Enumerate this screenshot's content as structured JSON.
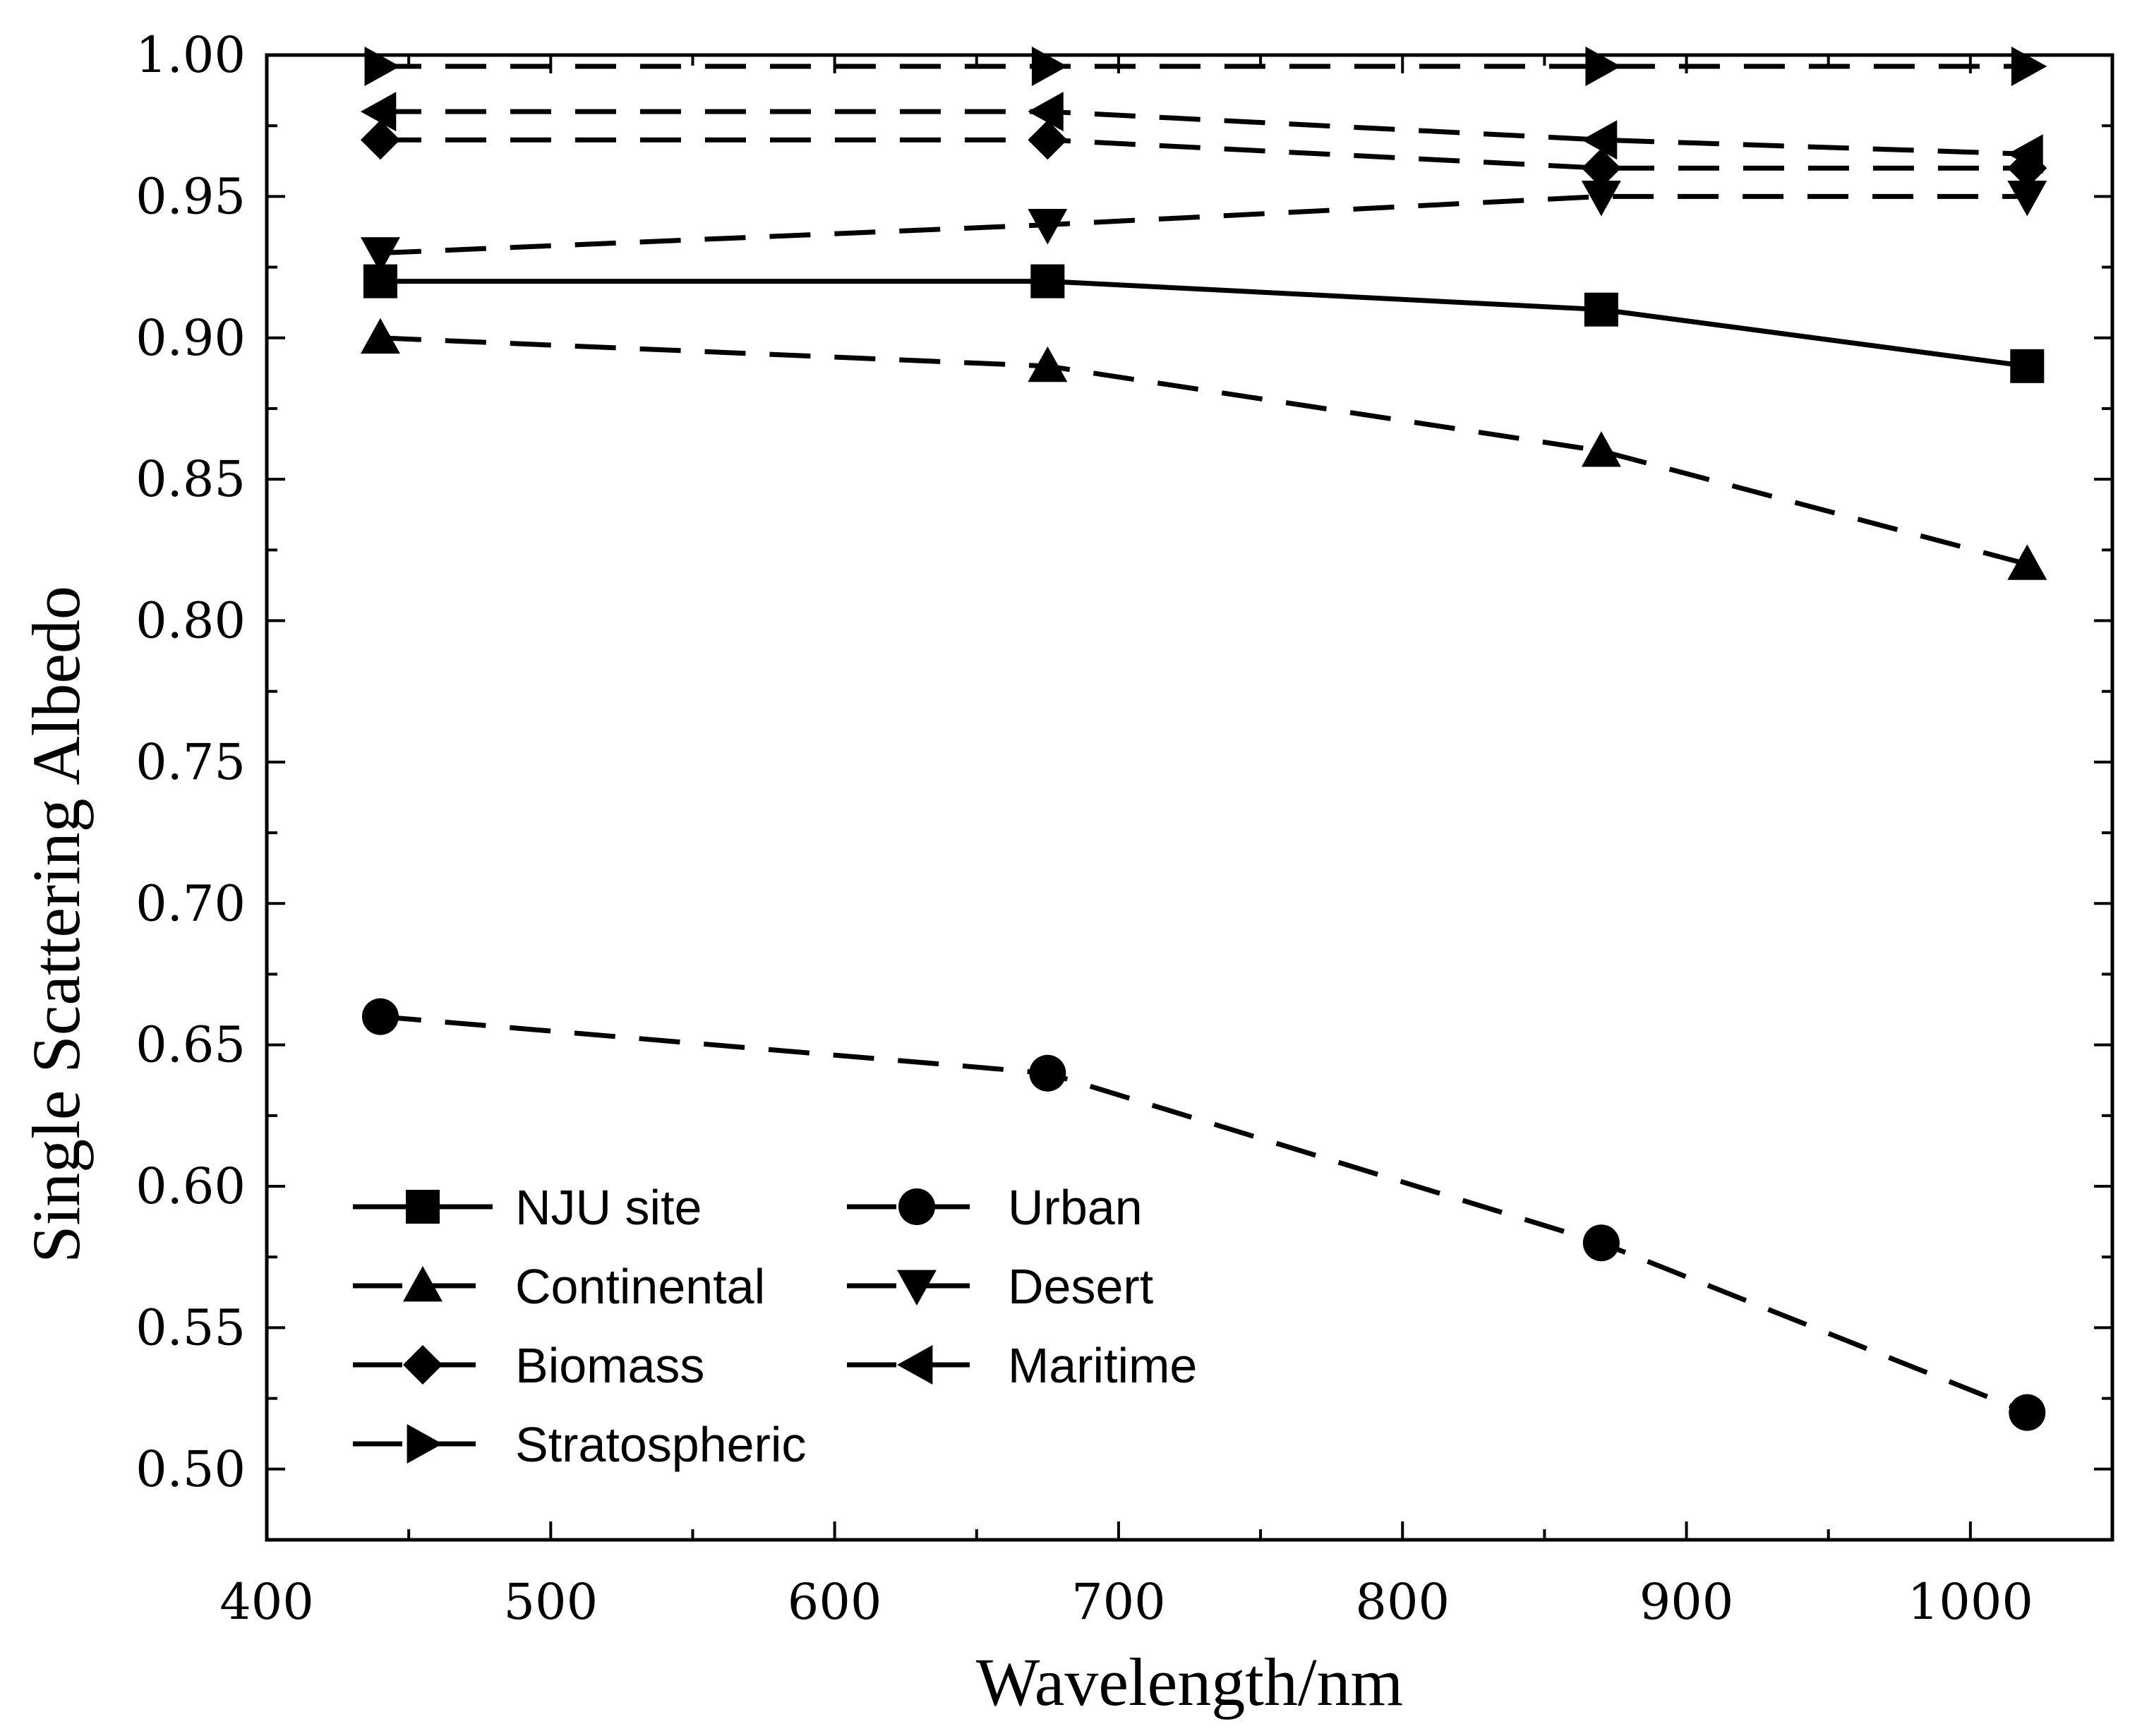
{
  "chart_data": {
    "type": "line",
    "title": "",
    "xlabel": "Wavelength/nm",
    "ylabel": "Single Scattering Albedo",
    "xlim": [
      400,
      1050
    ],
    "ylim": [
      0.475,
      1.0
    ],
    "x_ticks": [
      400,
      500,
      600,
      700,
      800,
      900,
      1000
    ],
    "x_tick_labels": [
      "400",
      "500",
      "600",
      "700",
      "800",
      "900",
      "1000"
    ],
    "y_ticks": [
      0.5,
      0.55,
      0.6,
      0.65,
      0.7,
      0.75,
      0.8,
      0.85,
      0.9,
      0.95,
      1.0
    ],
    "y_tick_labels": [
      "0.50",
      "0.55",
      "0.60",
      "0.65",
      "0.70",
      "0.75",
      "0.80",
      "0.85",
      "0.90",
      "0.95",
      "1.00"
    ],
    "grid": false,
    "legend_position": "bottom-left",
    "x": [
      440,
      675,
      870,
      1020
    ],
    "series": [
      {
        "name": "NJU site",
        "values": [
          0.92,
          0.92,
          0.91,
          0.89
        ],
        "line": "solid",
        "marker": "square"
      },
      {
        "name": "Urban",
        "values": [
          0.66,
          0.64,
          0.58,
          0.52
        ],
        "line": "dashed",
        "marker": "circle"
      },
      {
        "name": "Continental",
        "values": [
          0.9,
          0.89,
          0.86,
          0.82
        ],
        "line": "dashed",
        "marker": "triangle-up"
      },
      {
        "name": "Desert",
        "values": [
          0.93,
          0.94,
          0.95,
          0.95
        ],
        "line": "dashed",
        "marker": "triangle-down"
      },
      {
        "name": "Biomass",
        "values": [
          0.97,
          0.97,
          0.96,
          0.96
        ],
        "line": "dashed",
        "marker": "diamond"
      },
      {
        "name": "Maritime",
        "values": [
          0.98,
          0.98,
          0.97,
          0.965
        ],
        "line": "dashed",
        "marker": "triangle-left"
      },
      {
        "name": "Stratospheric",
        "values": [
          0.996,
          0.996,
          0.996,
          0.996
        ],
        "line": "dashed",
        "marker": "triangle-right"
      }
    ]
  },
  "colors": {
    "line": "#000000",
    "background": "#ffffff"
  }
}
